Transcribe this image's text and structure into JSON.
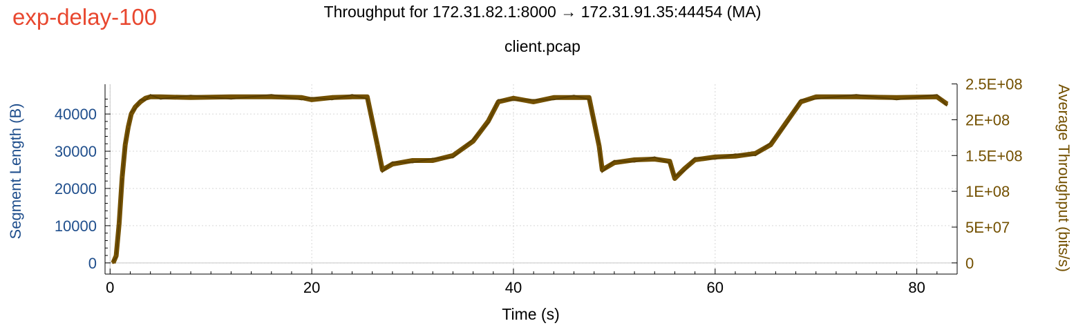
{
  "experiment_tag": "exp-delay-100",
  "chart_data": {
    "type": "line",
    "title": "Throughput for 172.31.82.1:8000 → 172.31.91.35:44454 (MA)",
    "subtitle": "client.pcap",
    "xlabel": "Time (s)",
    "ylabel_left": "Segment Length (B)",
    "ylabel_right": "Average Throughput (bits/s)",
    "xlim": [
      -0.5,
      84
    ],
    "ylim_left": [
      -3000,
      48000
    ],
    "ylim_right": [
      -15600000,
      249600000
    ],
    "x_ticks": [
      0,
      20,
      40,
      60,
      80
    ],
    "x_tick_labels": [
      "0",
      "20",
      "40",
      "60",
      "80"
    ],
    "y_left_ticks": [
      0,
      10000,
      20000,
      30000,
      40000
    ],
    "y_left_tick_labels": [
      "0",
      "10000",
      "20000",
      "30000",
      "40000"
    ],
    "y_right_ticks": [
      0,
      50000000,
      100000000,
      150000000,
      200000000,
      250000000
    ],
    "y_right_tick_labels": [
      "0",
      "5E+07",
      "1E+08",
      "1.5E+08",
      "2E+08",
      "2.5E+08"
    ],
    "grid": true,
    "colors": {
      "left_axis": "#1f4e8c",
      "right_axis": "#735000",
      "series": "#735000",
      "tag": "#e8472f"
    },
    "series": [
      {
        "axis": "right",
        "x": [
          0.3,
          0.6,
          0.9,
          1.2,
          1.5,
          1.8,
          2.1,
          2.5,
          3.0,
          3.5,
          4.0,
          5,
          8,
          12,
          16,
          19,
          20,
          22,
          24,
          25.5,
          26.5,
          27,
          28,
          30,
          32,
          34,
          36,
          37.5,
          38.5,
          40,
          42,
          44,
          46,
          47.5,
          48.5,
          48.8,
          50,
          52,
          54,
          55.5,
          56,
          57,
          58,
          60,
          62,
          64,
          65.5,
          67,
          68.5,
          70,
          74,
          78,
          82,
          83
        ],
        "y": [
          0,
          10000000,
          55000000,
          120000000,
          165000000,
          190000000,
          208000000,
          218000000,
          225000000,
          230000000,
          232000000,
          232000000,
          231000000,
          232000000,
          232000000,
          231000000,
          228000000,
          231000000,
          232000000,
          232000000,
          165000000,
          130000000,
          138000000,
          143000000,
          143000000,
          150000000,
          170000000,
          198000000,
          225000000,
          230000000,
          225000000,
          231000000,
          231000000,
          231000000,
          163000000,
          130000000,
          140000000,
          144000000,
          145000000,
          142000000,
          118000000,
          132000000,
          144000000,
          148000000,
          149000000,
          153000000,
          165000000,
          195000000,
          225000000,
          232000000,
          232000000,
          231000000,
          232000000,
          222000000
        ]
      }
    ]
  }
}
